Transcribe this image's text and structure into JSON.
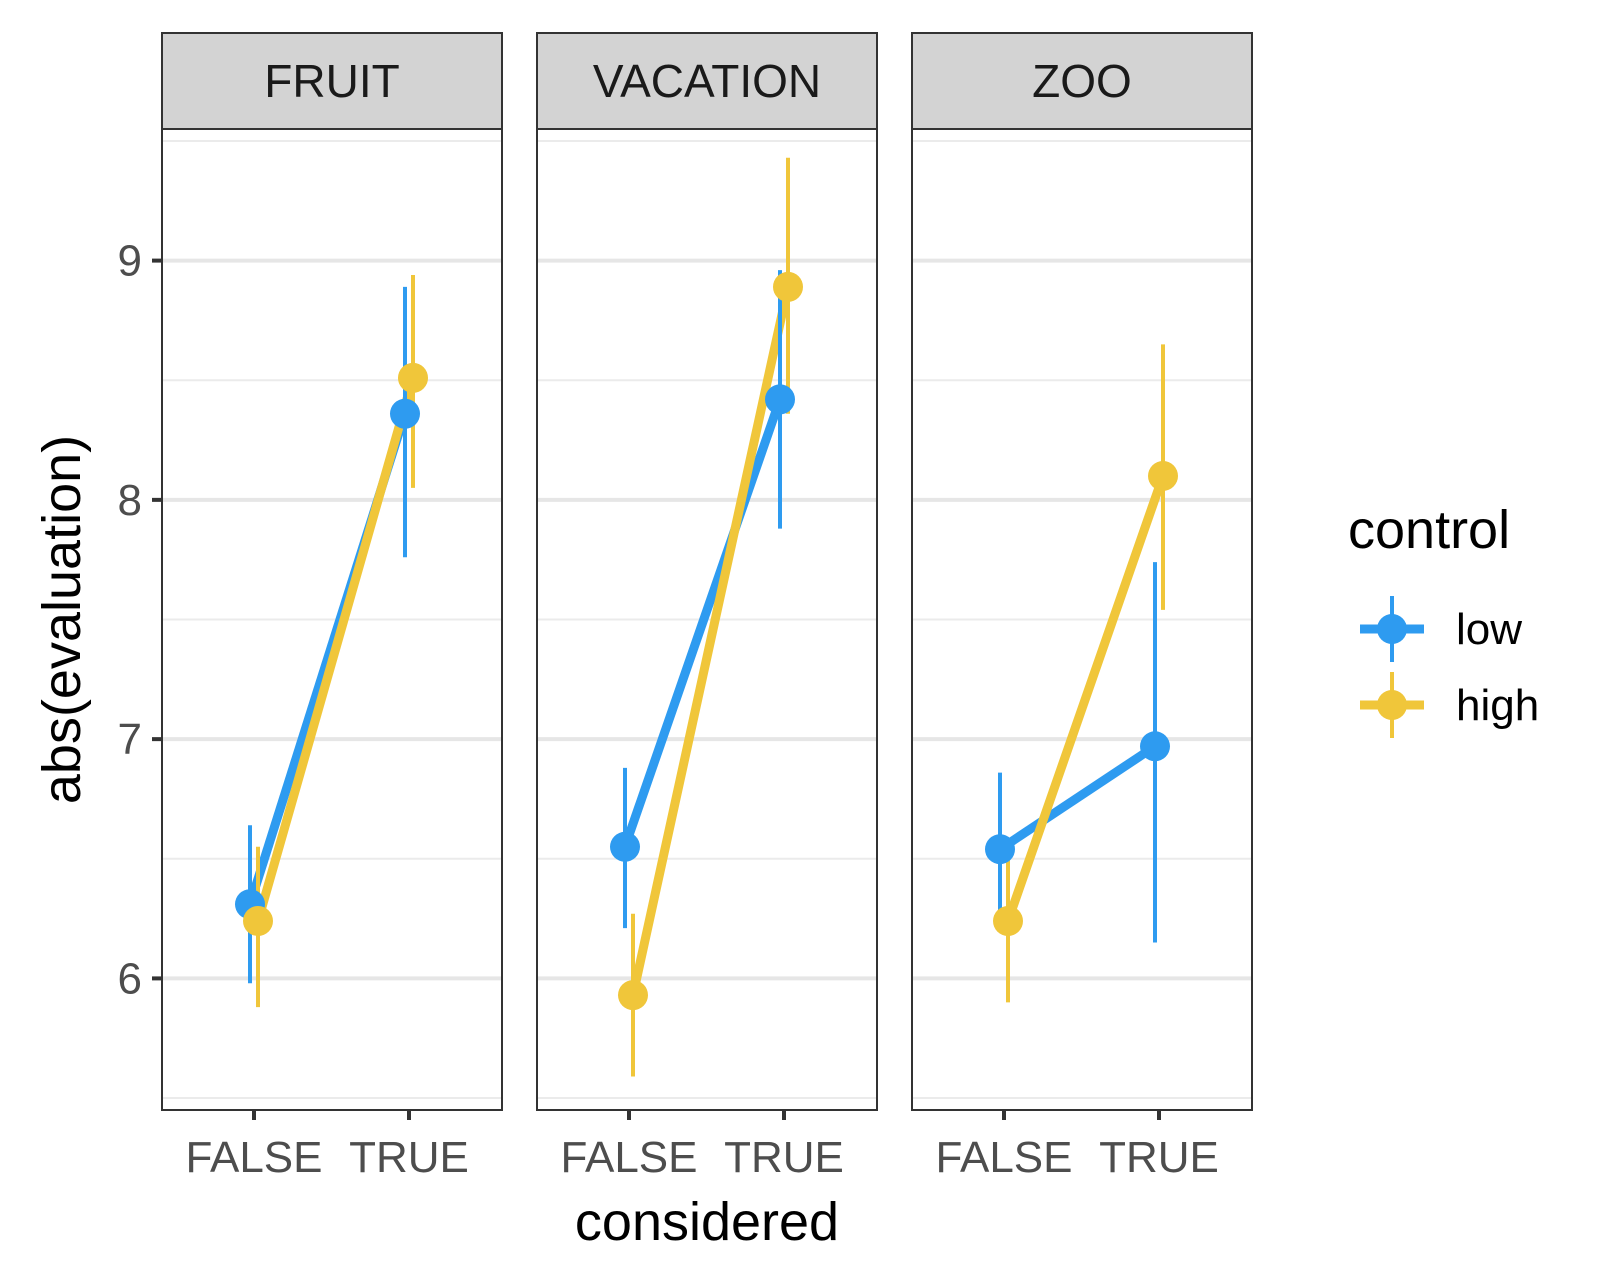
{
  "chart_data": {
    "type": "line",
    "xlabel": "considered",
    "ylabel": "abs(evaluation)",
    "categories": [
      "FALSE",
      "TRUE"
    ],
    "ylim": [
      5.45,
      9.55
    ],
    "y_ticks": [
      6,
      7,
      8,
      9
    ],
    "grid": true,
    "legend": {
      "title": "control",
      "placement": "right",
      "entries": [
        "low",
        "high"
      ]
    },
    "colors": {
      "low": "#2E9BF0",
      "high": "#F0C63A"
    },
    "panels": [
      {
        "label": "FRUIT",
        "series": [
          {
            "name": "low",
            "values": [
              6.31,
              8.36
            ],
            "err_low": [
              5.98,
              7.76
            ],
            "err_high": [
              6.64,
              8.89
            ]
          },
          {
            "name": "high",
            "values": [
              6.24,
              8.51
            ],
            "err_low": [
              5.88,
              8.05
            ],
            "err_high": [
              6.55,
              8.94
            ]
          }
        ]
      },
      {
        "label": "VACATION",
        "series": [
          {
            "name": "low",
            "values": [
              6.55,
              8.42
            ],
            "err_low": [
              6.21,
              7.88
            ],
            "err_high": [
              6.88,
              8.96
            ]
          },
          {
            "name": "high",
            "values": [
              5.93,
              8.89
            ],
            "err_low": [
              5.59,
              8.36
            ],
            "err_high": [
              6.27,
              9.43
            ]
          }
        ]
      },
      {
        "label": "ZOO",
        "series": [
          {
            "name": "low",
            "values": [
              6.54,
              6.97
            ],
            "err_low": [
              6.22,
              6.15
            ],
            "err_high": [
              6.86,
              7.74
            ]
          },
          {
            "name": "high",
            "values": [
              6.24,
              8.1
            ],
            "err_low": [
              5.9,
              7.54
            ],
            "err_high": [
              6.56,
              8.65
            ]
          }
        ]
      }
    ]
  }
}
